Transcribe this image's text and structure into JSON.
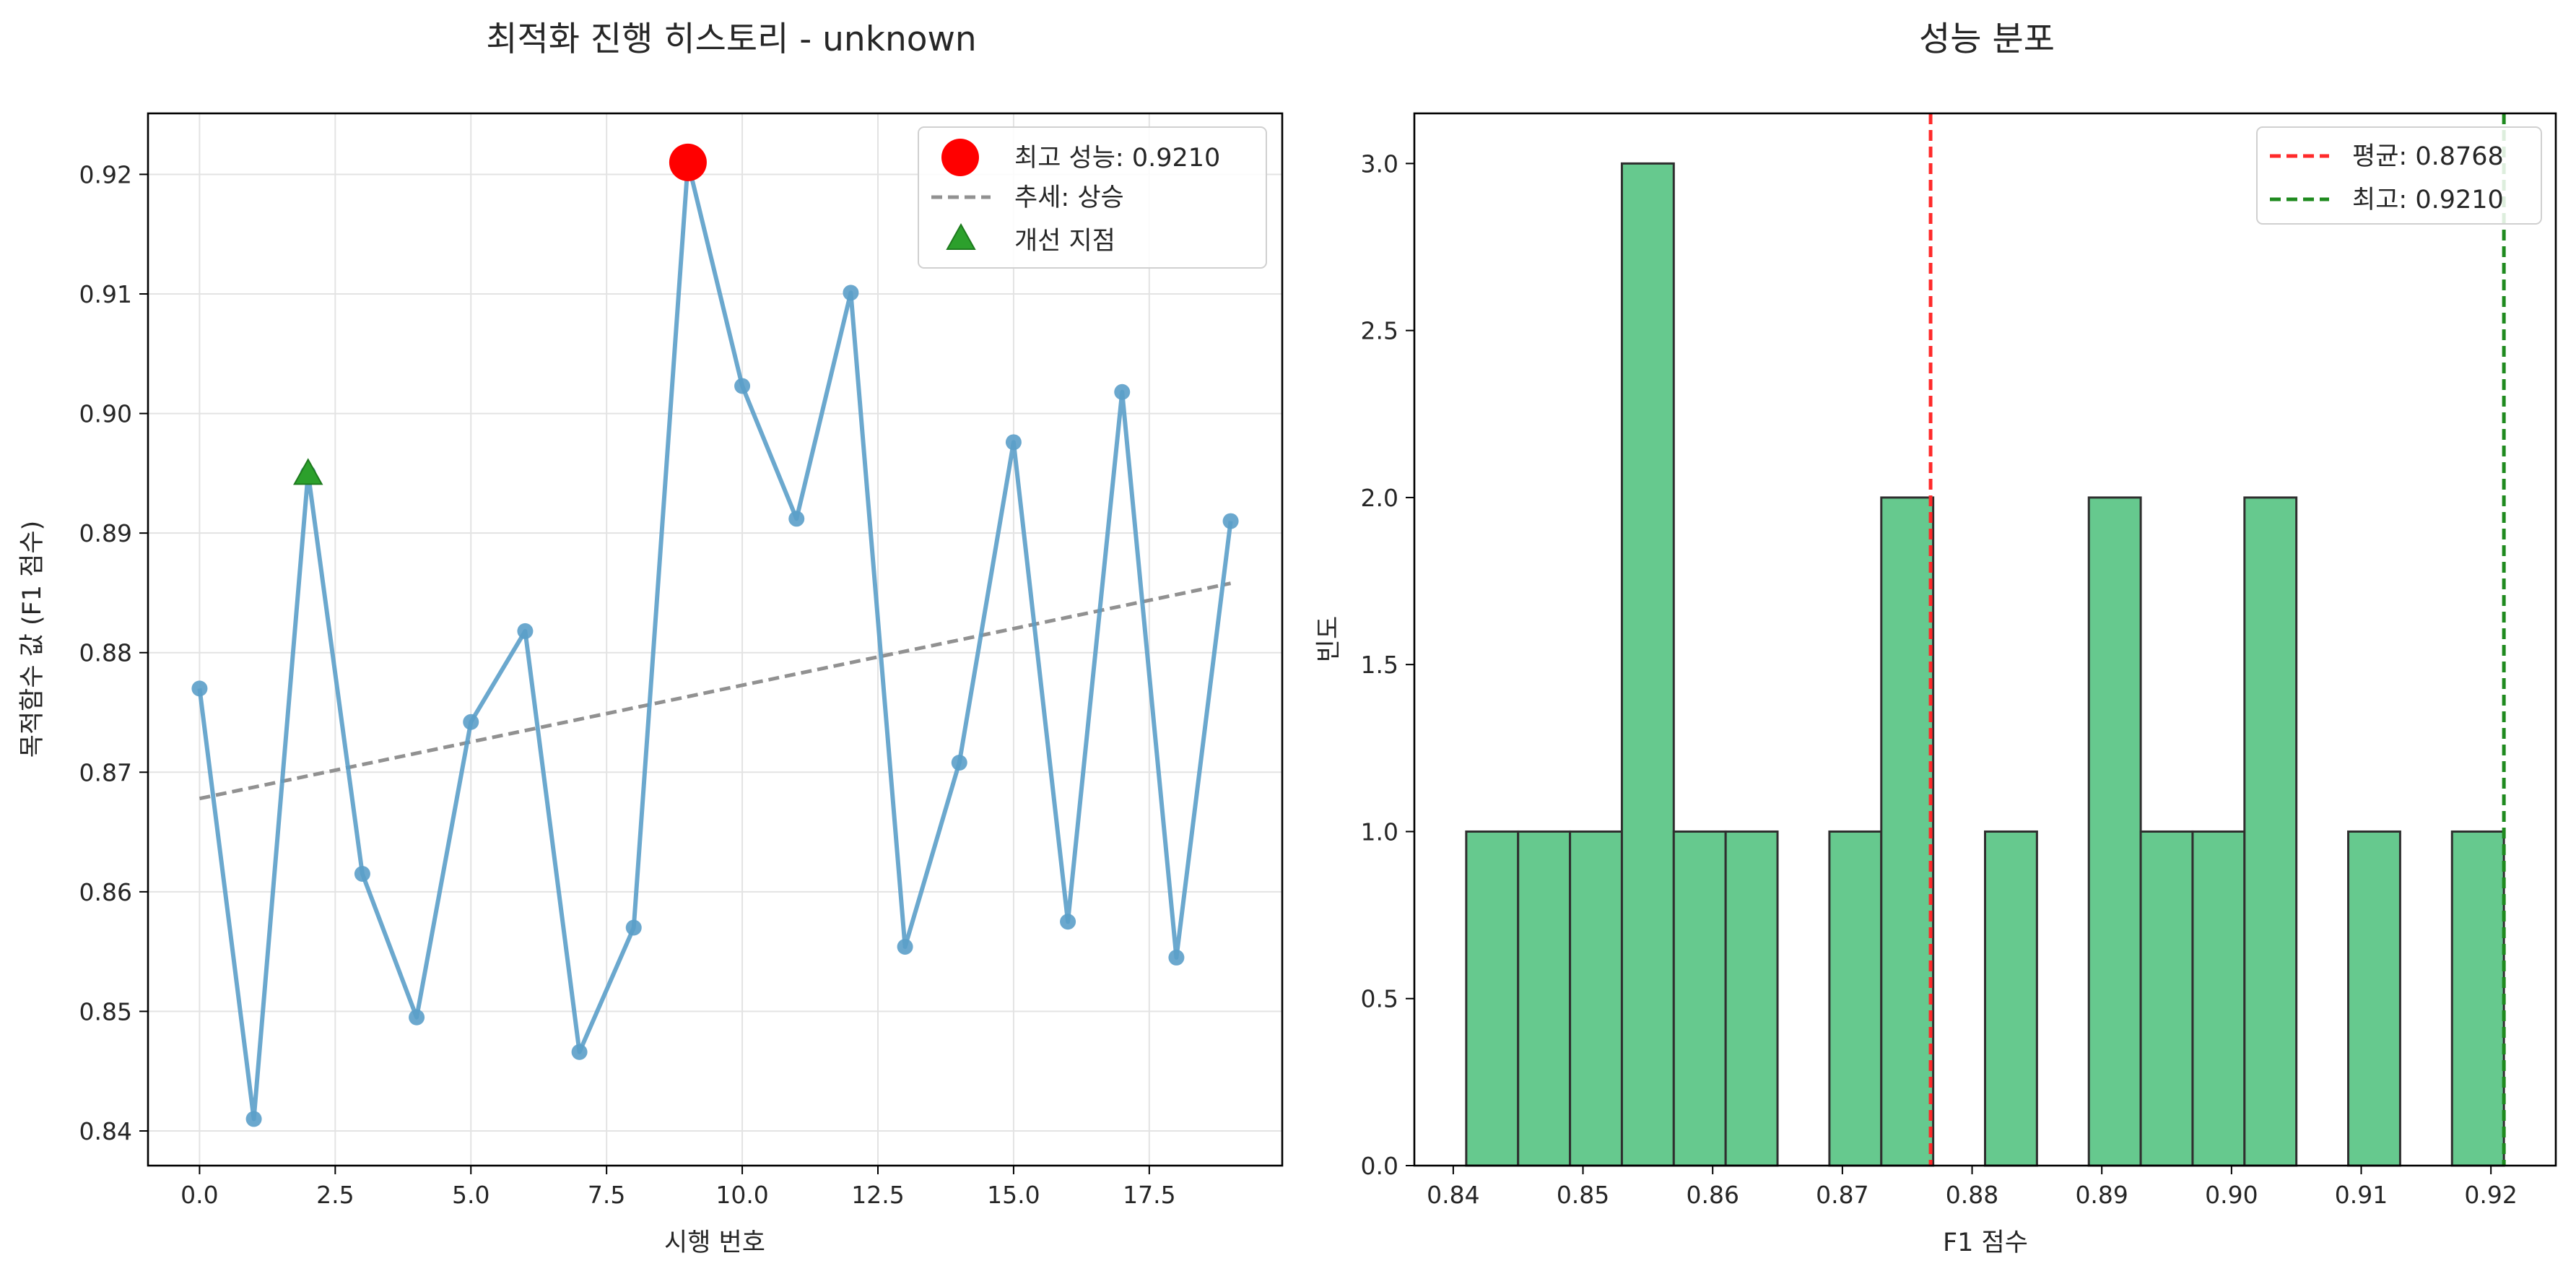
{
  "figure": {
    "background": "#ffffff"
  },
  "chart_data": [
    {
      "type": "line",
      "title": "최적화 진행 히스토리 - unknown",
      "xlabel": "시행 번호",
      "ylabel": "목적함수 값 (F1 점수)",
      "xlim": [
        -0.95,
        19.95
      ],
      "ylim": [
        0.8371,
        0.9251
      ],
      "xticks": [
        0,
        2.5,
        5,
        7.5,
        10,
        12.5,
        15,
        17.5
      ],
      "xtick_labels": [
        "0.0",
        "2.5",
        "5.0",
        "7.5",
        "10.0",
        "12.5",
        "15.0",
        "17.5"
      ],
      "yticks": [
        0.84,
        0.85,
        0.86,
        0.87,
        0.88,
        0.89,
        0.9,
        0.91,
        0.92
      ],
      "ytick_labels": [
        "0.84",
        "0.85",
        "0.86",
        "0.87",
        "0.88",
        "0.89",
        "0.90",
        "0.91",
        "0.92"
      ],
      "grid": true,
      "legend_position": "top-right",
      "series": [
        {
          "kind": "line-markers",
          "color": "#5b9ec9",
          "x": [
            0,
            1,
            2,
            3,
            4,
            5,
            6,
            7,
            8,
            9,
            10,
            11,
            12,
            13,
            14,
            15,
            16,
            17,
            18,
            19
          ],
          "values": [
            0.877,
            0.841,
            0.895,
            0.8615,
            0.8495,
            0.8742,
            0.8818,
            0.8466,
            0.857,
            0.921,
            0.9023,
            0.8912,
            0.9101,
            0.8554,
            0.8708,
            0.8976,
            0.8575,
            0.9018,
            0.8545,
            0.891
          ]
        },
        {
          "kind": "trend",
          "name": "추세: 상승",
          "color": "#919191",
          "x": [
            0,
            19
          ],
          "values": [
            0.8678,
            0.8858
          ]
        },
        {
          "kind": "best-point",
          "name": "최고 성능: 0.9210",
          "color": "#ff0000",
          "x": [
            9
          ],
          "values": [
            0.921
          ]
        },
        {
          "kind": "improvement-points",
          "name": "개선 지점",
          "color": "#2ca02c",
          "x": [
            2
          ],
          "values": [
            0.895
          ]
        }
      ]
    },
    {
      "type": "bar",
      "subtype": "histogram",
      "title": "성능 분포",
      "xlabel": "F1 점수",
      "ylabel": "빈도",
      "xlim": [
        0.837,
        0.925
      ],
      "ylim": [
        0,
        3.15
      ],
      "xticks": [
        0.84,
        0.85,
        0.86,
        0.87,
        0.88,
        0.89,
        0.9,
        0.91,
        0.92
      ],
      "xtick_labels": [
        "0.84",
        "0.85",
        "0.86",
        "0.87",
        "0.88",
        "0.89",
        "0.90",
        "0.91",
        "0.92"
      ],
      "yticks": [
        0,
        0.5,
        1,
        1.5,
        2,
        2.5,
        3
      ],
      "ytick_labels": [
        "0.0",
        "0.5",
        "1.0",
        "1.5",
        "2.0",
        "2.5",
        "3.0"
      ],
      "grid": false,
      "legend_position": "top-right",
      "bar_color": "#66c98e",
      "edge_color": "#2f2f2f",
      "bin_start": 0.841,
      "bin_width": 0.004,
      "counts": [
        1,
        1,
        1,
        3,
        1,
        1,
        0,
        1,
        2,
        0,
        1,
        0,
        2,
        1,
        1,
        2,
        0,
        1,
        0,
        1
      ],
      "vlines": [
        {
          "name": "평균: 0.8768",
          "value": 0.8768,
          "color": "#ff2a2a"
        },
        {
          "name": "최고: 0.9210",
          "value": 0.921,
          "color": "#1f8a1f"
        }
      ]
    }
  ]
}
